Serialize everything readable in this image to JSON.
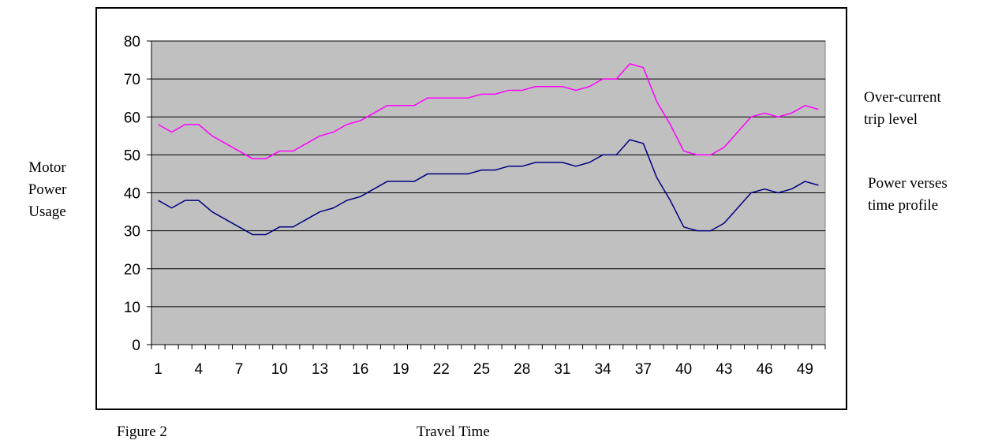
{
  "chart_data": {
    "type": "line",
    "xlabel": "Travel Time",
    "ylabel_lines": [
      "Motor",
      "Power",
      "Usage"
    ],
    "caption": "Figure 2",
    "ylim": [
      0,
      80
    ],
    "yticks": [
      0,
      10,
      20,
      30,
      40,
      50,
      60,
      70,
      80
    ],
    "x": [
      1,
      2,
      3,
      4,
      5,
      6,
      7,
      8,
      9,
      10,
      11,
      12,
      13,
      14,
      15,
      16,
      17,
      18,
      19,
      20,
      21,
      22,
      23,
      24,
      25,
      26,
      27,
      28,
      29,
      30,
      31,
      32,
      33,
      34,
      35,
      36,
      37,
      38,
      39,
      40,
      41,
      42,
      43,
      44,
      45,
      46,
      47,
      48,
      49,
      50
    ],
    "xtick_labels": [
      1,
      4,
      7,
      10,
      13,
      16,
      19,
      22,
      25,
      28,
      31,
      34,
      37,
      40,
      43,
      46,
      49
    ],
    "grid": "horizontal",
    "plot_background": "#c0c0c0",
    "series": [
      {
        "name_lines": [
          "Over-current",
          "trip level"
        ],
        "color": "#ff00ff",
        "values": [
          58,
          56,
          58,
          58,
          55,
          53,
          51,
          49,
          49,
          51,
          51,
          53,
          55,
          56,
          58,
          59,
          61,
          63,
          63,
          63,
          65,
          65,
          65,
          65,
          66,
          66,
          67,
          67,
          68,
          68,
          68,
          67,
          68,
          70,
          70,
          74,
          73,
          64,
          58,
          51,
          50,
          50,
          52,
          56,
          60,
          61,
          60,
          61,
          63,
          62
        ]
      },
      {
        "name_lines": [
          "Power verses",
          "time profile"
        ],
        "color": "#000080",
        "values": [
          38,
          36,
          38,
          38,
          35,
          33,
          31,
          29,
          29,
          31,
          31,
          33,
          35,
          36,
          38,
          39,
          41,
          43,
          43,
          43,
          45,
          45,
          45,
          45,
          46,
          46,
          47,
          47,
          48,
          48,
          48,
          47,
          48,
          50,
          50,
          54,
          53,
          44,
          38,
          31,
          30,
          30,
          32,
          36,
          40,
          41,
          40,
          41,
          43,
          42
        ]
      }
    ]
  }
}
